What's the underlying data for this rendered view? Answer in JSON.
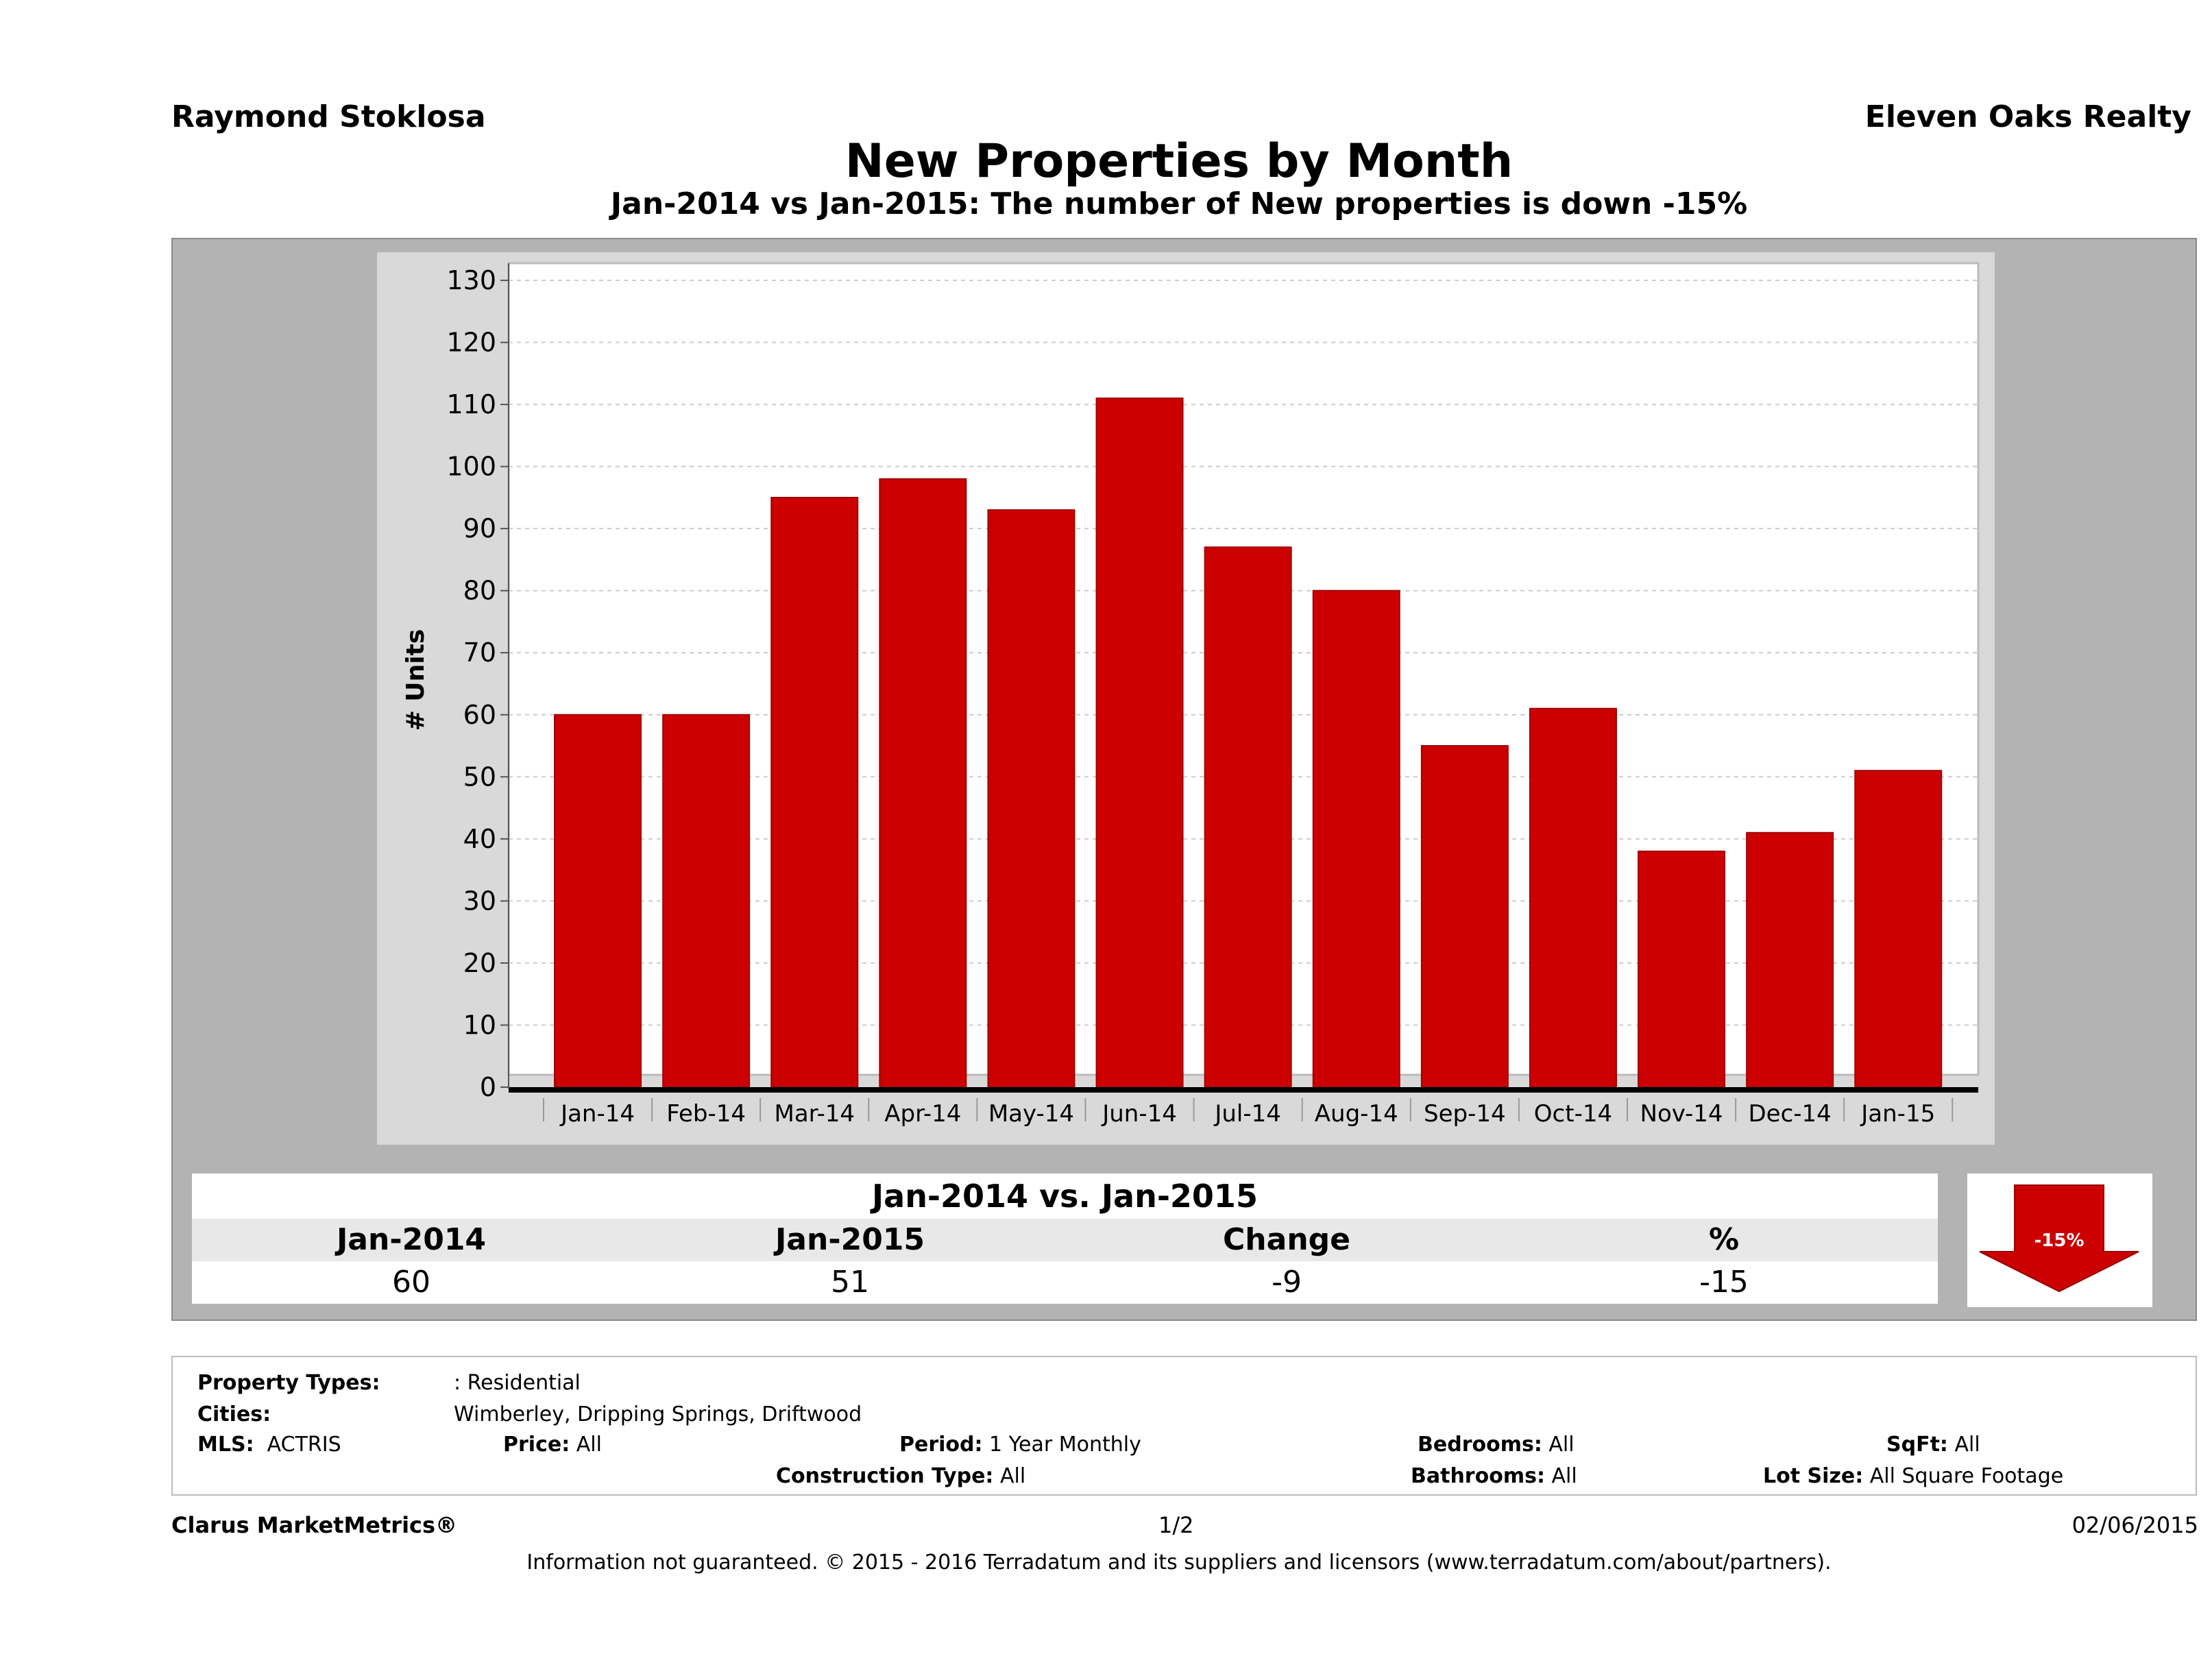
{
  "header": {
    "agent": "Raymond Stoklosa",
    "brokerage": "Eleven Oaks Realty",
    "title": "New Properties by Month",
    "subtitle": "Jan-2014 vs Jan-2015: The number of New  properties is down -15%"
  },
  "chart_data": {
    "type": "bar",
    "categories": [
      "Jan-14",
      "Feb-14",
      "Mar-14",
      "Apr-14",
      "May-14",
      "Jun-14",
      "Jul-14",
      "Aug-14",
      "Sep-14",
      "Oct-14",
      "Nov-14",
      "Dec-14",
      "Jan-15"
    ],
    "values": [
      60,
      60,
      95,
      98,
      93,
      111,
      87,
      80,
      55,
      61,
      38,
      41,
      51
    ],
    "ylabel": "# Units",
    "xlabel": "",
    "ylim": [
      0,
      130
    ],
    "yticks": [
      0,
      10,
      20,
      30,
      40,
      50,
      60,
      70,
      80,
      90,
      100,
      110,
      120,
      130
    ],
    "grid": true,
    "bar_color": "#cc0000"
  },
  "summary": {
    "heading": "Jan-2014 vs. Jan-2015",
    "labels": [
      "Jan-2014",
      "Jan-2015",
      "Change",
      "%"
    ],
    "values": [
      "60",
      "51",
      "-9",
      "-15"
    ],
    "arrow_label": "-15%",
    "arrow_color": "#cc0000"
  },
  "filters": {
    "property_types_label": "Property Types:",
    "property_types": ": Residential",
    "cities_label": "Cities:",
    "cities": "Wimberley, Dripping Springs, Driftwood",
    "mls_label": "MLS:",
    "mls": "ACTRIS",
    "price_label": "Price:",
    "price": "All",
    "period_label": "Period:",
    "period": "1 Year Monthly",
    "construction_label": "Construction Type:",
    "construction": "All",
    "bedrooms_label": "Bedrooms:",
    "bedrooms": "All",
    "bathrooms_label": "Bathrooms:",
    "bathrooms": "All",
    "sqft_label": "SqFt:",
    "sqft": "All",
    "lotsize_label": "Lot Size:",
    "lotsize": "All Square Footage"
  },
  "footer": {
    "brand": "Clarus MarketMetrics®",
    "page": "1/2",
    "date": "02/06/2015",
    "disclaimer": "Information not guaranteed. © 2015 - 2016 Terradatum and its suppliers and licensors (www.terradatum.com/about/partners)."
  }
}
